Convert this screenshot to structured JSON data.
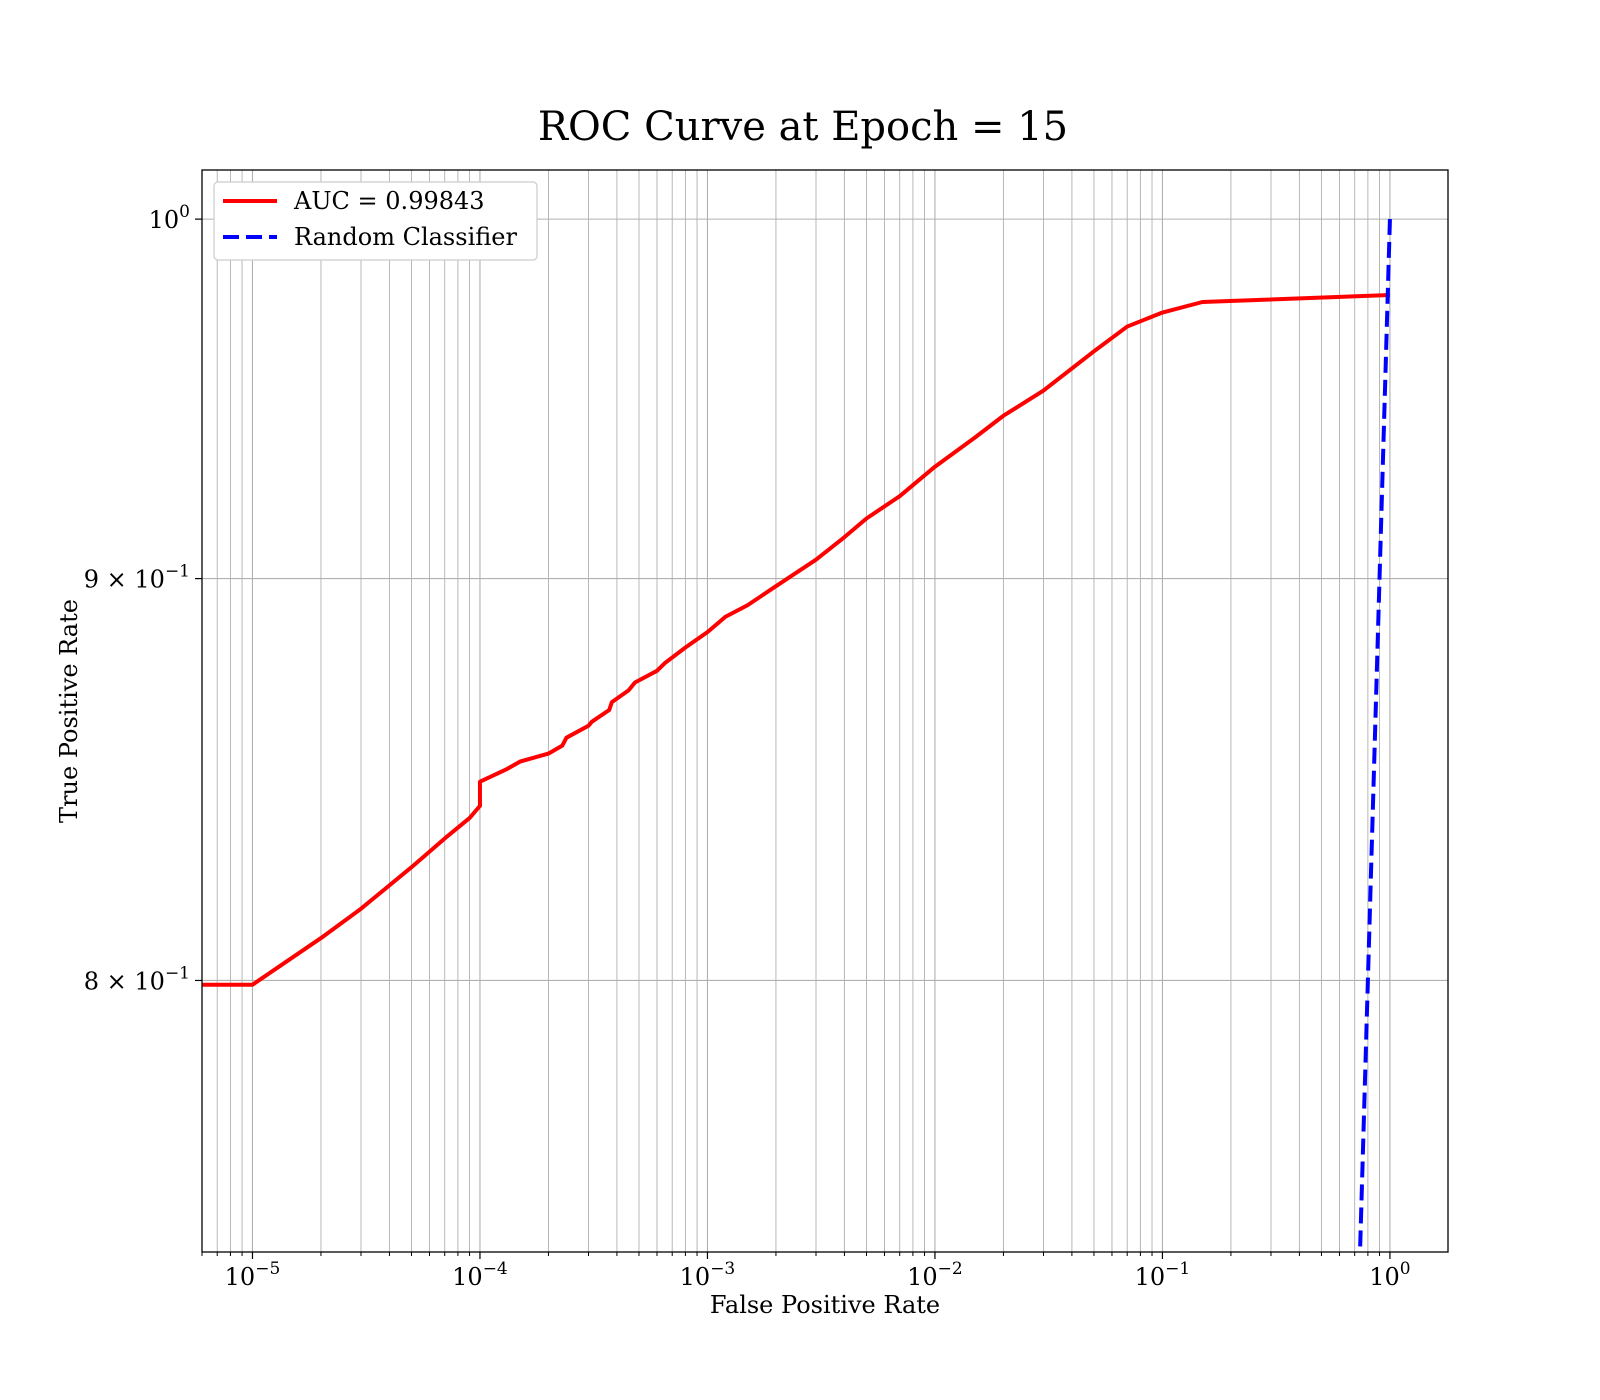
{
  "chart_data": {
    "type": "line",
    "title": "ROC Curve at Epoch = 15",
    "xlabel": "False Positive Rate",
    "ylabel": "True Positive Rate",
    "xscale": "log",
    "yscale": "log",
    "xlim": [
      6e-06,
      1.8
    ],
    "ylim": [
      0.7388,
      1.0145
    ],
    "grid": "both major and minor",
    "legend_position": "upper-left",
    "xticks": [
      {
        "base": "10",
        "exp": "−5",
        "value": 1e-05
      },
      {
        "base": "10",
        "exp": "−4",
        "value": 0.0001
      },
      {
        "base": "10",
        "exp": "−3",
        "value": 0.001
      },
      {
        "base": "10",
        "exp": "−2",
        "value": 0.01
      },
      {
        "base": "10",
        "exp": "−1",
        "value": 0.1
      },
      {
        "base": "10",
        "exp": "0",
        "value": 1
      }
    ],
    "yticks": [
      {
        "mant": "",
        "base": "10",
        "exp": "0",
        "value": 1.0
      },
      {
        "mant": "9 × ",
        "base": "10",
        "exp": "−1",
        "value": 0.9
      },
      {
        "mant": "8 × ",
        "base": "10",
        "exp": "−1",
        "value": 0.8
      }
    ],
    "series": [
      {
        "name": "AUC = 0.99843",
        "color": "#ff0000",
        "style": "solid",
        "x": [
          6e-06,
          1e-05,
          2e-05,
          3e-05,
          5e-05,
          7e-05,
          9e-05,
          0.0001,
          0.0001,
          0.00013,
          0.00015,
          0.0002,
          0.00023,
          0.00024,
          0.0003,
          0.00031,
          0.00037,
          0.00038,
          0.00045,
          0.00048,
          0.0006,
          0.00065,
          0.0008,
          0.001,
          0.0012,
          0.0015,
          0.002,
          0.003,
          0.004,
          0.005,
          0.007,
          0.01,
          0.015,
          0.02,
          0.03,
          0.05,
          0.07,
          0.1,
          0.15,
          1.0
        ],
        "y": [
          0.799,
          0.799,
          0.81,
          0.817,
          0.827,
          0.834,
          0.839,
          0.842,
          0.848,
          0.851,
          0.853,
          0.855,
          0.857,
          0.859,
          0.862,
          0.863,
          0.866,
          0.868,
          0.871,
          0.873,
          0.876,
          0.878,
          0.882,
          0.886,
          0.89,
          0.893,
          0.898,
          0.905,
          0.911,
          0.916,
          0.922,
          0.93,
          0.938,
          0.944,
          0.951,
          0.962,
          0.969,
          0.973,
          0.976,
          0.978
        ]
      },
      {
        "name": "Random Classifier",
        "color": "#0000ff",
        "style": "dashed",
        "x": [
          0.74,
          1.0
        ],
        "y": [
          0.74,
          1.0
        ]
      }
    ]
  }
}
